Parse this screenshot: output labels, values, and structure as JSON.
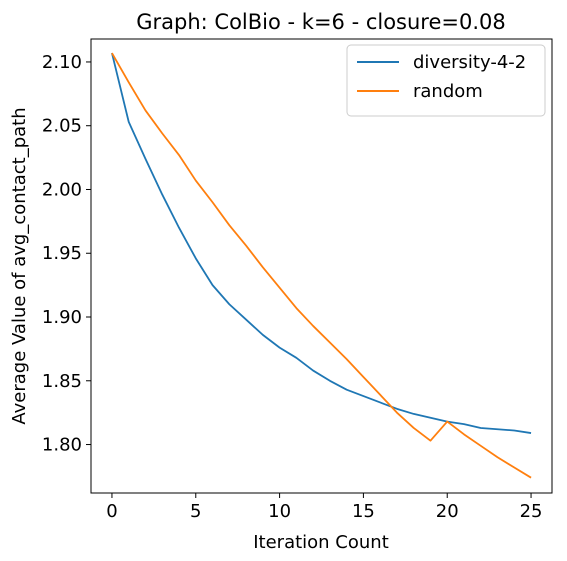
{
  "chart_data": {
    "type": "line",
    "title": "Graph: ColBio - k=6 - closure=0.08",
    "xlabel": "Iteration Count",
    "ylabel": "Average Value of avg_contact_path",
    "xlim": [
      -1.25,
      26.25
    ],
    "ylim": [
      1.762,
      2.118
    ],
    "xticks": [
      0,
      5,
      10,
      15,
      20,
      25
    ],
    "xtick_labels": [
      "0",
      "5",
      "10",
      "15",
      "20",
      "25"
    ],
    "yticks": [
      1.8,
      1.85,
      1.9,
      1.95,
      2.0,
      2.05,
      2.1
    ],
    "ytick_labels": [
      "1.80",
      "1.85",
      "1.90",
      "1.95",
      "2.00",
      "2.05",
      "2.10"
    ],
    "grid": false,
    "legend_position": "top-right",
    "x": [
      0,
      1,
      2,
      3,
      4,
      5,
      6,
      7,
      8,
      9,
      10,
      11,
      12,
      13,
      14,
      15,
      16,
      17,
      18,
      19,
      20,
      21,
      22,
      23,
      24,
      25
    ],
    "series": [
      {
        "name": "diversity-4-2",
        "color": "#1f77b4",
        "values": [
          2.107,
          2.053,
          2.024,
          1.996,
          1.97,
          1.946,
          1.925,
          1.91,
          1.898,
          1.886,
          1.876,
          1.868,
          1.858,
          1.85,
          1.843,
          1.838,
          1.833,
          1.828,
          1.824,
          1.821,
          1.818,
          1.816,
          1.813,
          1.812,
          1.811,
          1.809
        ]
      },
      {
        "name": "random",
        "color": "#ff7f0e",
        "values": [
          2.107,
          2.084,
          2.062,
          2.044,
          2.027,
          2.007,
          1.99,
          1.972,
          1.956,
          1.939,
          1.923,
          1.907,
          1.893,
          1.88,
          1.867,
          1.853,
          1.839,
          1.825,
          1.813,
          1.803,
          1.818,
          1.808,
          1.799,
          1.79,
          1.782,
          1.774
        ]
      }
    ]
  }
}
